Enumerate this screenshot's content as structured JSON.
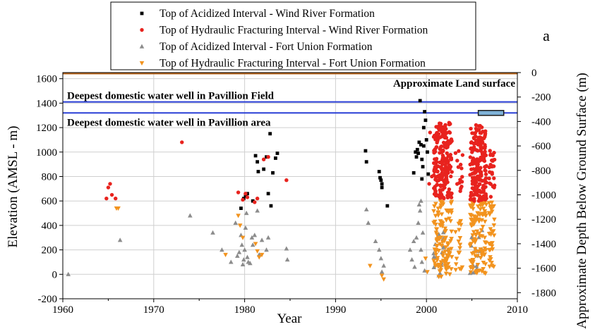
{
  "panel_label": "a",
  "chart_data": {
    "type": "scatter",
    "title": "",
    "xlabel": "Year",
    "ylabel": "Elevation (AMSL - m)",
    "y2label": "Approximate Depth Below Ground Surface (m)",
    "xlim": [
      1960,
      2010
    ],
    "ylim": [
      -200,
      1650
    ],
    "y2lim": [
      -1850,
      0
    ],
    "x_ticks": [
      1960,
      1970,
      1980,
      1990,
      2000,
      2010
    ],
    "y_ticks": [
      -200,
      0,
      200,
      400,
      600,
      800,
      1000,
      1200,
      1400,
      1600
    ],
    "y2_ticks": [
      0,
      -200,
      -400,
      -600,
      -800,
      -1000,
      -1200,
      -1400,
      -1600,
      -1800
    ],
    "grid": true,
    "legend_position": "top-center",
    "reference_lines": [
      {
        "label": "Approximate Land surface",
        "y": 1650,
        "color": "#b5651d"
      },
      {
        "label": "Deepest domestic water well in Pavillion Field",
        "y": 1410,
        "color": "#2a3fd6"
      },
      {
        "label": "Deepest domestic water well in Pavillion area",
        "y": 1320,
        "color": "#2a3fd6"
      }
    ],
    "annotation_box": {
      "x": [
        2005.7,
        2008.5
      ],
      "y": [
        1300,
        1340
      ],
      "color": "#7fb2d8"
    },
    "series": [
      {
        "name": "Top of Acidized Interval - Wind River Formation",
        "marker": "square",
        "color": "#000000",
        "points": [
          [
            1979.6,
            540
          ],
          [
            1979.9,
            620
          ],
          [
            1980.1,
            640
          ],
          [
            1980.3,
            660
          ],
          [
            1980.9,
            600
          ],
          [
            1981.2,
            970
          ],
          [
            1981.4,
            920
          ],
          [
            1981.5,
            840
          ],
          [
            1982.1,
            860
          ],
          [
            1982.4,
            960
          ],
          [
            1982.6,
            660
          ],
          [
            1982.8,
            1150
          ],
          [
            1982.9,
            560
          ],
          [
            1983.1,
            830
          ],
          [
            1983.4,
            950
          ],
          [
            1983.6,
            990
          ],
          [
            1993.3,
            1010
          ],
          [
            1993.4,
            920
          ],
          [
            1994.8,
            840
          ],
          [
            1994.9,
            790
          ],
          [
            1995.0,
            770
          ],
          [
            1995.1,
            740
          ],
          [
            1995.1,
            710
          ],
          [
            1995.7,
            560
          ],
          [
            1998.6,
            830
          ],
          [
            1998.8,
            1000
          ],
          [
            1998.9,
            960
          ],
          [
            1999.0,
            1020
          ],
          [
            1999.1,
            990
          ],
          [
            1999.2,
            1080
          ],
          [
            1999.3,
            1420
          ],
          [
            1999.4,
            1060
          ],
          [
            1999.5,
            940
          ],
          [
            1999.6,
            880
          ],
          [
            1999.7,
            1200
          ],
          [
            1999.8,
            1330
          ],
          [
            1999.9,
            1260
          ],
          [
            2000.0,
            1100
          ],
          [
            2000.1,
            1000
          ],
          [
            2000.2,
            820
          ],
          [
            1999.5,
            780
          ],
          [
            1999.7,
            1050
          ]
        ]
      },
      {
        "name": "Top of Hydraulic Fracturing Interval - Wind River Formation",
        "marker": "circle",
        "color": "#e8231e",
        "points": [
          [
            1964.8,
            620
          ],
          [
            1965.0,
            710
          ],
          [
            1965.2,
            740
          ],
          [
            1965.4,
            650
          ],
          [
            1965.8,
            620
          ],
          [
            1973.1,
            1080
          ],
          [
            1979.3,
            670
          ],
          [
            1979.8,
            610
          ],
          [
            1980.1,
            660
          ],
          [
            1980.3,
            630
          ],
          [
            1981.1,
            590
          ],
          [
            1981.4,
            620
          ],
          [
            1982.1,
            940
          ],
          [
            1982.6,
            960
          ],
          [
            1984.6,
            770
          ],
          [
            2000.3,
            740
          ],
          [
            2000.6,
            800
          ],
          [
            2000.4,
            1160
          ]
        ]
      },
      {
        "name": "Top of Acidized Interval - Fort Union Formation",
        "marker": "triangle-up",
        "color": "#8c8c8c",
        "points": [
          [
            1960.6,
            0
          ],
          [
            1966.3,
            280
          ],
          [
            1974.0,
            480
          ],
          [
            1976.5,
            340
          ],
          [
            1977.5,
            200
          ],
          [
            1978.5,
            100
          ],
          [
            1979.0,
            420
          ],
          [
            1979.2,
            150
          ],
          [
            1979.4,
            180
          ],
          [
            1979.6,
            320
          ],
          [
            1979.7,
            240
          ],
          [
            1979.8,
            80
          ],
          [
            1979.9,
            120
          ],
          [
            1980.0,
            200
          ],
          [
            1980.1,
            380
          ],
          [
            1980.2,
            500
          ],
          [
            1980.3,
            140
          ],
          [
            1980.4,
            100
          ],
          [
            1980.6,
            90
          ],
          [
            1980.8,
            300
          ],
          [
            1980.9,
            240
          ],
          [
            1981.1,
            320
          ],
          [
            1981.4,
            520
          ],
          [
            1981.6,
            160
          ],
          [
            1981.9,
            280
          ],
          [
            1982.4,
            200
          ],
          [
            1982.6,
            300
          ],
          [
            1984.6,
            210
          ],
          [
            1984.7,
            120
          ],
          [
            1993.4,
            530
          ],
          [
            1993.6,
            420
          ],
          [
            1994.4,
            270
          ],
          [
            1994.8,
            200
          ],
          [
            1995.0,
            130
          ],
          [
            1995.1,
            20
          ],
          [
            1995.3,
            70
          ],
          [
            1998.2,
            200
          ],
          [
            1998.4,
            120
          ],
          [
            1998.6,
            270
          ],
          [
            1998.7,
            60
          ],
          [
            1998.9,
            300
          ],
          [
            1999.1,
            420
          ],
          [
            1999.2,
            570
          ],
          [
            1999.3,
            520
          ],
          [
            1999.4,
            200
          ],
          [
            1999.5,
            100
          ],
          [
            1999.6,
            340
          ],
          [
            1999.8,
            30
          ],
          [
            1999.4,
            600
          ]
        ]
      },
      {
        "name": "Top of Hydraulic Fracturing Interval - Fort Union Formation",
        "marker": "triangle-down",
        "color": "#f2931e",
        "points": [
          [
            1965.9,
            540
          ],
          [
            1966.1,
            540
          ],
          [
            1977.9,
            160
          ],
          [
            1979.3,
            480
          ],
          [
            1979.5,
            400
          ],
          [
            1979.8,
            300
          ],
          [
            1981.2,
            250
          ],
          [
            1981.4,
            190
          ],
          [
            1981.6,
            140
          ],
          [
            1981.9,
            160
          ],
          [
            1993.8,
            70
          ],
          [
            1995.1,
            -10
          ],
          [
            1995.3,
            -40
          ],
          [
            1999.9,
            130
          ],
          [
            2000.1,
            20
          ]
        ]
      }
    ]
  }
}
